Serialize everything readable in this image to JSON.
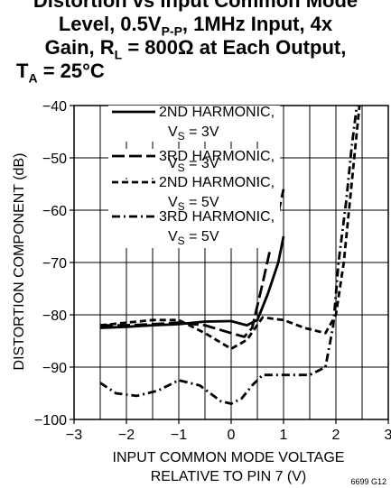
{
  "chart_data": {
    "type": "line",
    "title_lines": [
      "Distortion vs Input Common Mode",
      "Level, 0.5V",
      "P-P",
      ", 1MHz Input, 4x",
      "Gain, R",
      "L",
      " = 800Ω at Each Output,",
      "T",
      "A",
      " = 25°C"
    ],
    "xlabel_lines": [
      "INPUT COMMON MODE VOLTAGE",
      "RELATIVE TO PIN 7 (V)"
    ],
    "ylabel": "DISTORTION COMPONENT (dB)",
    "xlim": [
      -3,
      3
    ],
    "ylim": [
      -100,
      -40
    ],
    "xticks": [
      "−3",
      "−2",
      "−1",
      "0",
      "1",
      "2",
      "3"
    ],
    "yticks": [
      "−100",
      "−90",
      "−80",
      "−70",
      "−60",
      "−50",
      "−40"
    ],
    "grid": true,
    "series": [
      {
        "name": "2ND HARMONIC,",
        "name_sub": [
          "V",
          "S",
          " = 3V"
        ],
        "dash": "solid",
        "x": [
          -2.5,
          -2,
          -1.5,
          -1,
          -0.5,
          0,
          0.3,
          0.5,
          0.7,
          0.9,
          1.0
        ],
        "y": [
          -82.5,
          -82.3,
          -82.0,
          -81.8,
          -81.3,
          -81.2,
          -82.0,
          -81.0,
          -76.0,
          -70.0,
          -65.0
        ]
      },
      {
        "name": "3RD HARMONIC,",
        "name_sub": [
          "V",
          "S",
          " = 3V"
        ],
        "dash": "longdash",
        "x": [
          -2.5,
          -2,
          -1.5,
          -1,
          -0.5,
          0,
          0.25,
          0.4,
          0.6,
          0.8,
          1.0
        ],
        "y": [
          -82.0,
          -82.0,
          -81.8,
          -81.5,
          -82.0,
          -83.5,
          -84.2,
          -82.5,
          -74.0,
          -65.0,
          -56.0
        ]
      },
      {
        "name": "2ND HARMONIC,",
        "name_sub": [
          "V",
          "S",
          " = 5V"
        ],
        "dash": "dash",
        "x": [
          -2.5,
          -2,
          -1.5,
          -1,
          -0.5,
          0,
          0.3,
          0.6,
          1.0,
          1.4,
          1.8,
          2.0,
          2.15,
          2.3,
          2.45
        ],
        "y": [
          -82.0,
          -81.5,
          -81.0,
          -81.0,
          -83.5,
          -86.5,
          -84.8,
          -80.5,
          -81.0,
          -82.5,
          -83.5,
          -80.0,
          -70.0,
          -55.0,
          -40.0
        ]
      },
      {
        "name": "3RD HARMONIC,",
        "name_sub": [
          "V",
          "S",
          " = 5V"
        ],
        "dash": "dashdot",
        "x": [
          -2.5,
          -2.2,
          -1.8,
          -1.4,
          -1.0,
          -0.6,
          -0.2,
          0,
          0.2,
          0.4,
          0.6,
          1.0,
          1.5,
          1.8,
          1.95,
          2.05,
          2.2,
          2.3,
          2.4
        ],
        "y": [
          -93.0,
          -95.0,
          -95.5,
          -94.5,
          -92.5,
          -93.5,
          -96.5,
          -97.0,
          -96.0,
          -93.5,
          -91.5,
          -91.5,
          -91.5,
          -90.0,
          -82.0,
          -70.0,
          -58.0,
          -48.0,
          -40.0
        ]
      }
    ],
    "code": "6699 G12"
  }
}
